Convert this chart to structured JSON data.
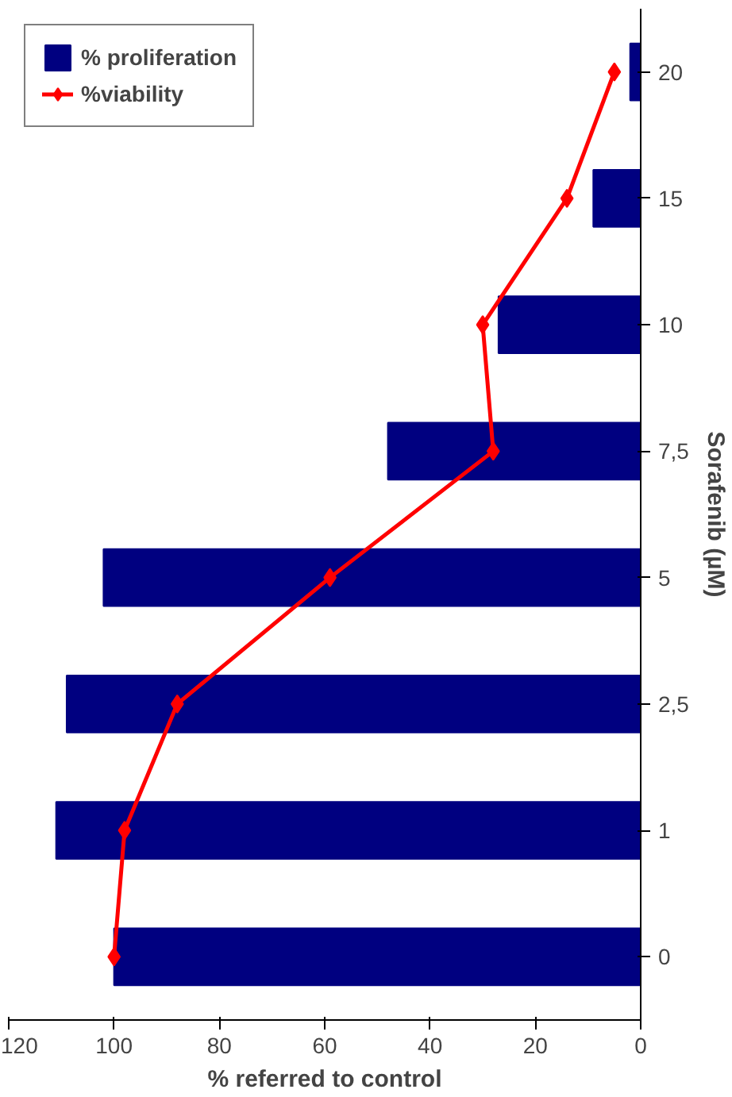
{
  "chart_data": {
    "type": "bar",
    "orientation": "horizontal",
    "xlabel": "% referred to control",
    "ylabel": "Sorafenib (µM)",
    "categories": [
      "20",
      "15",
      "10",
      "7,5",
      "5",
      "2,5",
      "1",
      "0"
    ],
    "series": [
      {
        "name": "% proliferation",
        "color": "#000080",
        "values": [
          2,
          9,
          27,
          48,
          102,
          109,
          111,
          100
        ]
      },
      {
        "name": "%viability",
        "type": "line",
        "color": "#ff0000",
        "values": [
          5,
          14,
          30,
          28,
          59,
          88,
          98,
          100
        ]
      }
    ],
    "xlim": [
      120,
      0
    ],
    "xticks": [
      0,
      20,
      40,
      60,
      80,
      100,
      120
    ],
    "marker": "diamond",
    "legend": "top left"
  }
}
